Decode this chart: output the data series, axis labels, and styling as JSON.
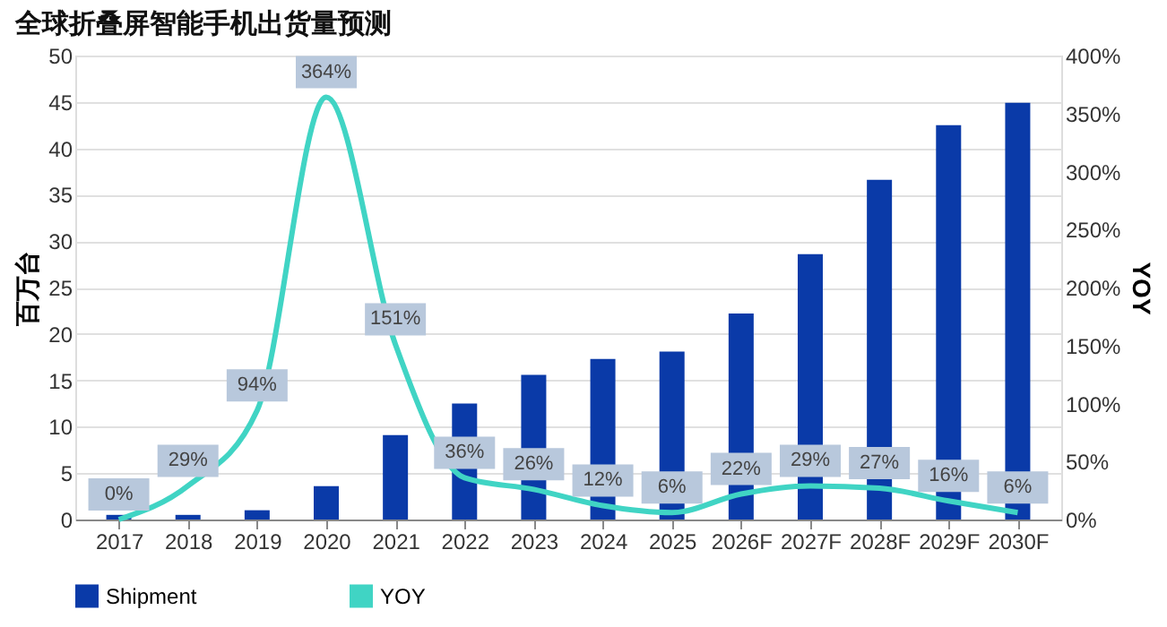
{
  "chart_data": {
    "type": "bar",
    "title": "全球折叠屏智能手机出货量预测",
    "ylabel": "百万台",
    "y2label": "YOY",
    "categories": [
      "2017",
      "2018",
      "2019",
      "2020",
      "2021",
      "2022",
      "2023",
      "2024",
      "2025",
      "2026F",
      "2027F",
      "2028F",
      "2029F",
      "2030F"
    ],
    "series": [
      {
        "name": "Shipment",
        "color": "#0a3aa8",
        "values": [
          0.5,
          0.5,
          1.0,
          3.6,
          9.1,
          12.5,
          15.6,
          17.3,
          18.1,
          22.2,
          28.6,
          36.6,
          42.5,
          44.9
        ]
      },
      {
        "name": "YOY",
        "type": "line",
        "axis": "y2",
        "color": "#40d4c4",
        "values": [
          0,
          29,
          94,
          364,
          151,
          36,
          26,
          12,
          6,
          22,
          29,
          27,
          16,
          6
        ],
        "value_labels": [
          "0%",
          "29%",
          "94%",
          "364%",
          "151%",
          "36%",
          "26%",
          "12%",
          "6%",
          "22%",
          "29%",
          "27%",
          "16%",
          "6%"
        ]
      }
    ],
    "ylim": [
      0,
      50
    ],
    "yticks": [
      0,
      5,
      10,
      15,
      20,
      25,
      30,
      35,
      40,
      45,
      50
    ],
    "y2lim": [
      0,
      400
    ],
    "y2ticks": [
      {
        "value": 0,
        "label": "0%"
      },
      {
        "value": 50,
        "label": "50%"
      },
      {
        "value": 100,
        "label": "100%"
      },
      {
        "value": 150,
        "label": "150%"
      },
      {
        "value": 200,
        "label": "200%"
      },
      {
        "value": 250,
        "label": "250%"
      },
      {
        "value": 300,
        "label": "300%"
      },
      {
        "value": 350,
        "label": "350%"
      },
      {
        "value": 400,
        "label": "400%"
      }
    ],
    "grid": "y",
    "legend": "bottom"
  }
}
